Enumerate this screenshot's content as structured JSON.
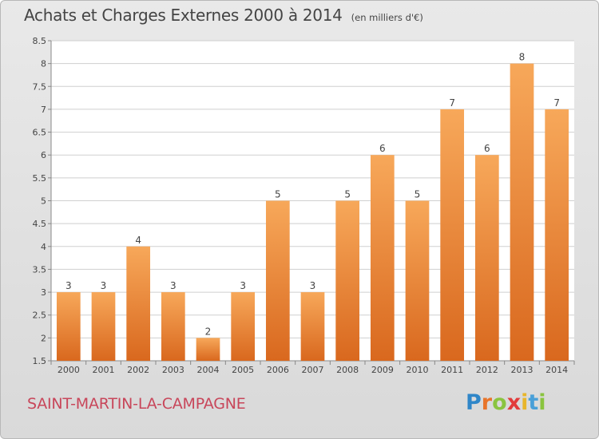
{
  "header": {
    "title": "Achats et Charges Externes 2000 à 2014",
    "subtitle": "(en milliers d'€)"
  },
  "footer": {
    "commune": "SAINT-MARTIN-LA-CAMPAGNE",
    "logo_letters": [
      "P",
      "r",
      "o",
      "x",
      "i",
      "t",
      "i"
    ],
    "logo_colors": [
      "#2f86c8",
      "#e8742a",
      "#8ac43f",
      "#e23b3b",
      "#e8b52a",
      "#4aa0d8",
      "#8ac43f"
    ]
  },
  "chart_data": {
    "type": "bar",
    "title": "Achats et Charges Externes 2000 à 2014",
    "subtitle": "(en milliers d'€)",
    "categories": [
      "2000",
      "2001",
      "2002",
      "2003",
      "2004",
      "2005",
      "2006",
      "2007",
      "2008",
      "2009",
      "2010",
      "2011",
      "2012",
      "2013",
      "2014"
    ],
    "values": [
      3,
      3,
      4,
      3,
      2,
      3,
      5,
      3,
      5,
      6,
      5,
      7,
      6,
      8,
      7
    ],
    "data_labels": [
      "3",
      "3",
      "4",
      "3",
      "2",
      "3",
      "5",
      "3",
      "5",
      "6",
      "5",
      "7",
      "6",
      "8",
      "7"
    ],
    "ylim": [
      1.5,
      8.5
    ],
    "yticks": [
      1.5,
      2,
      2.5,
      3,
      3.5,
      4,
      4.5,
      5,
      5.5,
      6,
      6.5,
      7,
      7.5,
      8,
      8.5
    ],
    "ytick_labels": [
      "1.5",
      "2",
      "2.5",
      "3",
      "3.5",
      "4",
      "4.5",
      "5",
      "5.5",
      "6",
      "6.5",
      "7",
      "7.5",
      "8",
      "8.5"
    ],
    "grid": true,
    "colors": {
      "bar_light": "#f7a85a",
      "bar_dark": "#d9681e",
      "grid": "#cfcfcf",
      "plot_bg": "#ffffff"
    }
  }
}
